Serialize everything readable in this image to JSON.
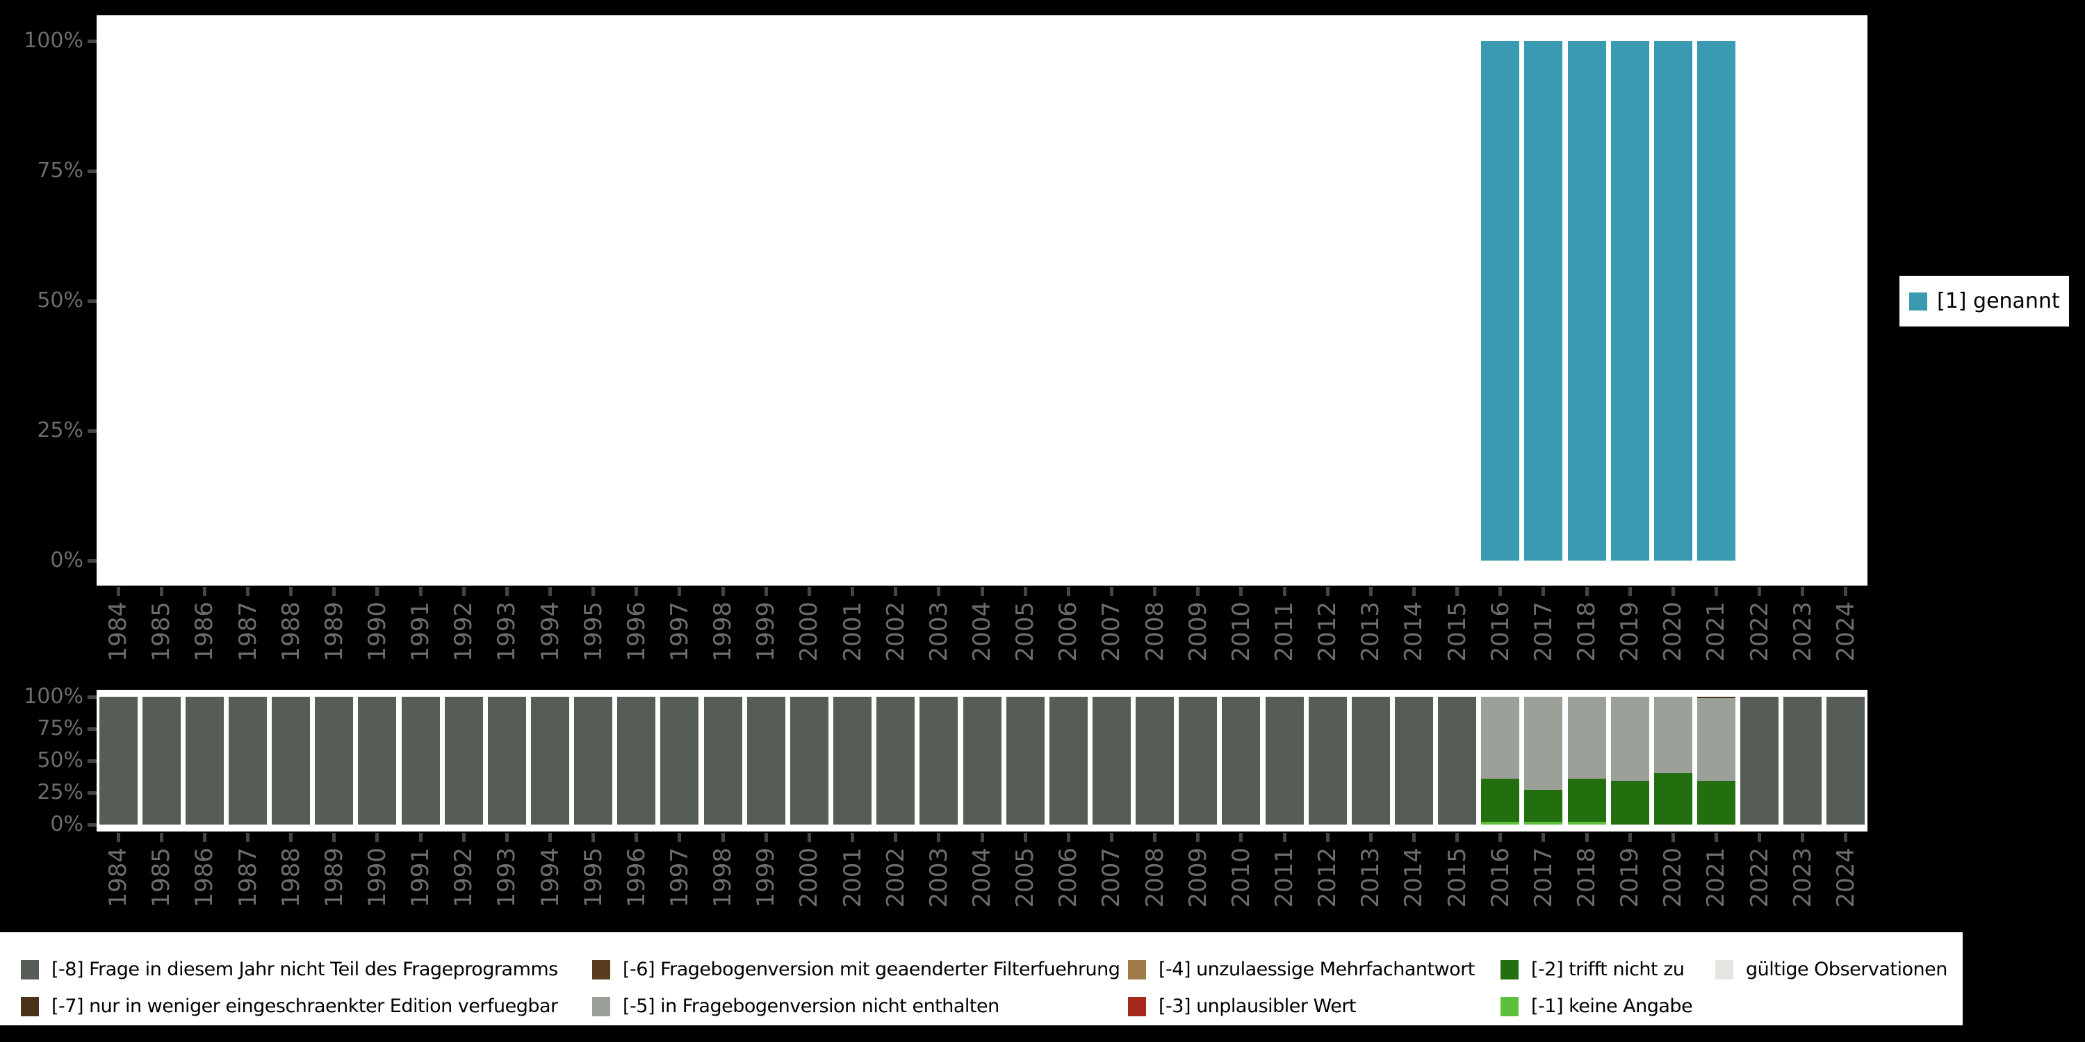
{
  "background_color": "#000000",
  "axis": {
    "text_color": "#6d6d6d",
    "tick_color": "#454545",
    "y_tick_labels": [
      "100%",
      "75%",
      "50%",
      "25%",
      "0%"
    ]
  },
  "colors": {
    "genannt": "#3a9ab1",
    "-8": "#565d56",
    "-7": "#4a3219",
    "-6": "#5a3d1e",
    "-5": "#9ba099",
    "-4": "#a17a4a",
    "-3": "#a5291d",
    "-2": "#236e0e",
    "-1": "#5cc03c",
    "valid": "#e4e7e1"
  },
  "years": [
    1984,
    1985,
    1986,
    1987,
    1988,
    1989,
    1990,
    1991,
    1992,
    1993,
    1994,
    1995,
    1996,
    1997,
    1998,
    1999,
    2000,
    2001,
    2002,
    2003,
    2004,
    2005,
    2006,
    2007,
    2008,
    2009,
    2010,
    2011,
    2012,
    2013,
    2014,
    2015,
    2016,
    2017,
    2018,
    2019,
    2020,
    2021,
    2022,
    2023,
    2024
  ],
  "right_legend": {
    "label": "[1] genannt",
    "color_key": "genannt"
  },
  "bottom_legend": {
    "columns": [
      [
        {
          "key": "-8",
          "label": "[-8] Frage in diesem Jahr nicht Teil des Frageprogramms"
        },
        {
          "key": "-7",
          "label": "[-7] nur in weniger eingeschraenkter Edition verfuegbar"
        }
      ],
      [
        {
          "key": "-6",
          "label": "[-6] Fragebogenversion mit geaenderter Filterfuehrung"
        },
        {
          "key": "-5",
          "label": "[-5] in Fragebogenversion nicht enthalten"
        }
      ],
      [
        {
          "key": "-4",
          "label": "[-4] unzulaessige Mehrfachantwort"
        },
        {
          "key": "-3",
          "label": "[-3] unplausibler Wert"
        }
      ],
      [
        {
          "key": "-2",
          "label": "[-2] trifft nicht zu"
        },
        {
          "key": "-1",
          "label": "[-1] keine Angabe"
        }
      ],
      [
        {
          "key": "valid",
          "label": "gültige Observationen"
        }
      ]
    ]
  },
  "chart_data": [
    {
      "type": "bar",
      "title": "",
      "xlabel": "",
      "ylabel": "",
      "ylim": [
        0,
        100
      ],
      "grid": false,
      "y_ticks": [
        "100%",
        "75%",
        "50%",
        "25%",
        "0%"
      ],
      "categories": [
        1984,
        1985,
        1986,
        1987,
        1988,
        1989,
        1990,
        1991,
        1992,
        1993,
        1994,
        1995,
        1996,
        1997,
        1998,
        1999,
        2000,
        2001,
        2002,
        2003,
        2004,
        2005,
        2006,
        2007,
        2008,
        2009,
        2010,
        2011,
        2012,
        2013,
        2014,
        2015,
        2016,
        2017,
        2018,
        2019,
        2020,
        2021,
        2022,
        2023,
        2024
      ],
      "series": [
        {
          "name": "[1] genannt",
          "color_key": "genannt",
          "values": [
            0,
            0,
            0,
            0,
            0,
            0,
            0,
            0,
            0,
            0,
            0,
            0,
            0,
            0,
            0,
            0,
            0,
            0,
            0,
            0,
            0,
            0,
            0,
            0,
            0,
            0,
            0,
            0,
            0,
            0,
            0,
            0,
            100,
            100,
            100,
            100,
            100,
            100,
            0,
            0,
            0
          ]
        }
      ],
      "legend_position": "right"
    },
    {
      "type": "stacked-bar",
      "title": "",
      "xlabel": "",
      "ylabel": "",
      "ylim": [
        0,
        100
      ],
      "grid": false,
      "y_ticks": [
        "100%",
        "75%",
        "50%",
        "25%",
        "0%"
      ],
      "categories": [
        1984,
        1985,
        1986,
        1987,
        1988,
        1989,
        1990,
        1991,
        1992,
        1993,
        1994,
        1995,
        1996,
        1997,
        1998,
        1999,
        2000,
        2001,
        2002,
        2003,
        2004,
        2005,
        2006,
        2007,
        2008,
        2009,
        2010,
        2011,
        2012,
        2013,
        2014,
        2015,
        2016,
        2017,
        2018,
        2019,
        2020,
        2021,
        2022,
        2023,
        2024
      ],
      "stacks_note": "per year, bottom-up segments [color_key, percent]",
      "stacks": [
        [
          [
            "-8",
            100
          ]
        ],
        [
          [
            "-8",
            100
          ]
        ],
        [
          [
            "-8",
            100
          ]
        ],
        [
          [
            "-8",
            100
          ]
        ],
        [
          [
            "-8",
            100
          ]
        ],
        [
          [
            "-8",
            100
          ]
        ],
        [
          [
            "-8",
            100
          ]
        ],
        [
          [
            "-8",
            100
          ]
        ],
        [
          [
            "-8",
            100
          ]
        ],
        [
          [
            "-8",
            100
          ]
        ],
        [
          [
            "-8",
            100
          ]
        ],
        [
          [
            "-8",
            100
          ]
        ],
        [
          [
            "-8",
            100
          ]
        ],
        [
          [
            "-8",
            100
          ]
        ],
        [
          [
            "-8",
            100
          ]
        ],
        [
          [
            "-8",
            100
          ]
        ],
        [
          [
            "-8",
            100
          ]
        ],
        [
          [
            "-8",
            100
          ]
        ],
        [
          [
            "-8",
            100
          ]
        ],
        [
          [
            "-8",
            100
          ]
        ],
        [
          [
            "-8",
            100
          ]
        ],
        [
          [
            "-8",
            100
          ]
        ],
        [
          [
            "-8",
            100
          ]
        ],
        [
          [
            "-8",
            100
          ]
        ],
        [
          [
            "-8",
            100
          ]
        ],
        [
          [
            "-8",
            100
          ]
        ],
        [
          [
            "-8",
            100
          ]
        ],
        [
          [
            "-8",
            100
          ]
        ],
        [
          [
            "-8",
            100
          ]
        ],
        [
          [
            "-8",
            100
          ]
        ],
        [
          [
            "-8",
            100
          ]
        ],
        [
          [
            "-8",
            100
          ]
        ],
        [
          [
            "-1",
            2
          ],
          [
            "-2",
            34
          ],
          [
            "-5",
            64
          ]
        ],
        [
          [
            "-1",
            2
          ],
          [
            "-2",
            25
          ],
          [
            "-5",
            73
          ]
        ],
        [
          [
            "-1",
            2
          ],
          [
            "-2",
            34
          ],
          [
            "-5",
            64
          ]
        ],
        [
          [
            "-2",
            34
          ],
          [
            "-5",
            66
          ]
        ],
        [
          [
            "-2",
            40
          ],
          [
            "-5",
            60
          ]
        ],
        [
          [
            "-2",
            34
          ],
          [
            "-5",
            65
          ],
          [
            "-7",
            1
          ]
        ],
        [
          [
            "-8",
            100
          ]
        ],
        [
          [
            "-8",
            100
          ]
        ],
        [
          [
            "-8",
            100
          ]
        ]
      ],
      "legend_position": "bottom"
    }
  ]
}
